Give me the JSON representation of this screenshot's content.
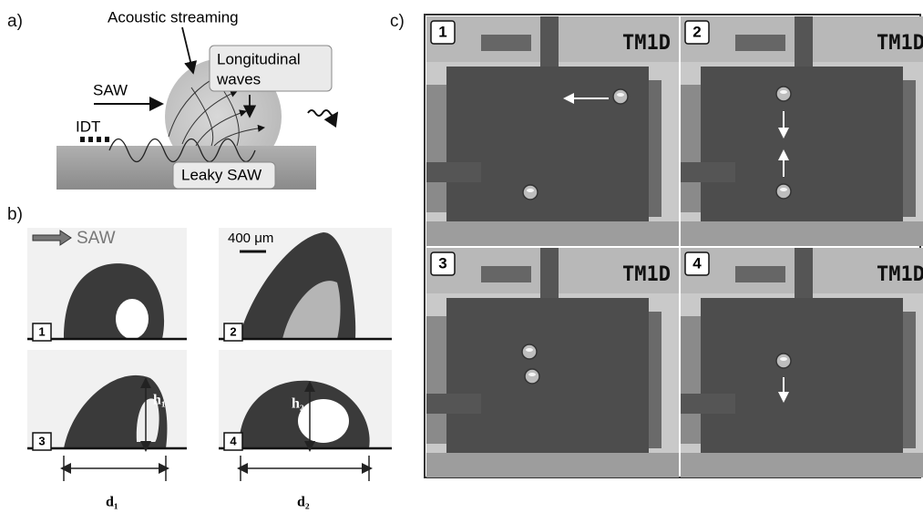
{
  "panel_a": {
    "label": "a)",
    "acoustic_streaming": "Acoustic streaming",
    "longitudinal_waves": [
      "Longitudinal",
      "waves"
    ],
    "saw": "SAW",
    "idt": "IDT",
    "leaky_saw": "Leaky SAW"
  },
  "panel_b": {
    "label": "b)",
    "saw": "SAW",
    "scale_bar": "400 μm",
    "frames": [
      "1",
      "2",
      "3",
      "4"
    ],
    "h1": "h₁",
    "h2": "h₂",
    "d1": "d₁",
    "d2": "d₂"
  },
  "panel_c": {
    "label": "c)",
    "frames": [
      {
        "number": "1",
        "chip": "TM1D"
      },
      {
        "number": "2",
        "chip": "TM1D"
      },
      {
        "number": "3",
        "chip": "TM1D"
      },
      {
        "number": "4",
        "chip": "TM1D"
      }
    ]
  }
}
